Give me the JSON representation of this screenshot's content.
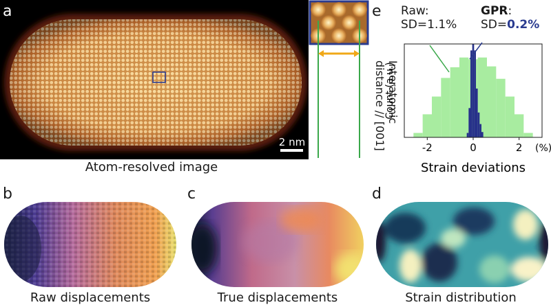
{
  "figure": {
    "panels": {
      "a": {
        "letter": "a",
        "caption": "Atom-resolved image",
        "scale_bar": "2 nm",
        "inset_label_line1": "Interatomic",
        "inset_label_line2": "distance // [001]",
        "colors": {
          "frame": "#2a3b8f",
          "arrow": "#f0a818",
          "marker": "#3aa84a"
        }
      },
      "b": {
        "letter": "b",
        "caption": "Raw displacements"
      },
      "c": {
        "letter": "c",
        "caption": "True displacements"
      },
      "d": {
        "letter": "d",
        "caption": "Strain distribution"
      },
      "e": {
        "letter": "e",
        "xlabel": "Strain deviations",
        "ylabel": "Count (a.u.)",
        "raw_label": "Raw:",
        "raw_sd": "SD=1.1%",
        "gpr_label": "GPR",
        "gpr_colon": ":",
        "gpr_sd_prefix": "SD=",
        "gpr_sd_value": "0.2%",
        "colors": {
          "raw": "#a8eca0",
          "gpr": "#27318a",
          "gpr_text": "#2a3b8f"
        }
      }
    }
  },
  "chart_data": {
    "type": "bar",
    "xlim": [
      -3,
      3
    ],
    "x_ticks": [
      -2,
      0,
      2
    ],
    "x_tick_labels": [
      "-2",
      "0",
      "2"
    ],
    "x_unit": "(%)",
    "bin_width": 0.4,
    "series": [
      {
        "bin_starts": [
          -2.6,
          -2.2,
          -1.8,
          -1.4,
          -1.0,
          -0.6,
          -0.2,
          0.2,
          0.6,
          1.0,
          1.4,
          1.8,
          2.2
        ],
        "values": [
          0.05,
          0.26,
          0.46,
          0.67,
          0.79,
          0.9,
          0.88,
          0.9,
          0.8,
          0.66,
          0.46,
          0.26,
          0.05
        ]
      },
      {
        "bin_starts": [
          -0.28,
          -0.2,
          -0.12,
          -0.04,
          0.04,
          0.12,
          0.2,
          0.28,
          0.36
        ],
        "values": [
          0.05,
          0.33,
          0.98,
          1.05,
          0.98,
          0.55,
          0.28,
          0.15,
          0.06
        ]
      }
    ]
  }
}
